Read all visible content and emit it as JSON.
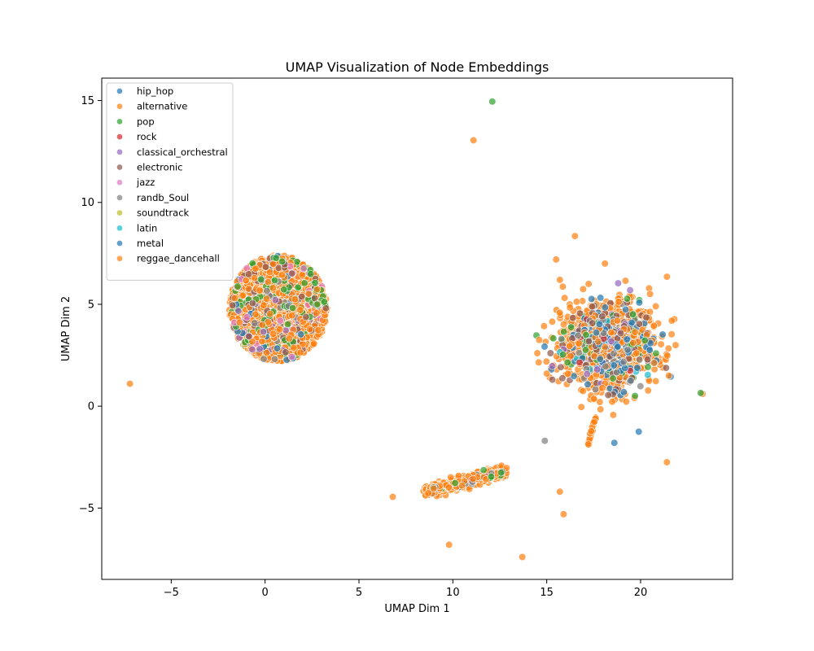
{
  "chart_data": {
    "type": "scatter",
    "title": "UMAP Visualization of Node Embeddings",
    "xlabel": "UMAP Dim 1",
    "ylabel": "UMAP Dim 2",
    "xlim": [
      -8.7,
      24.9
    ],
    "ylim": [
      -8.5,
      16.1
    ],
    "xticks": [
      -5,
      0,
      5,
      10,
      15,
      20
    ],
    "yticks": [
      -5,
      0,
      5,
      10,
      15
    ],
    "grid": false,
    "legend_position": "top-left",
    "legend": [
      {
        "name": "hip_hop",
        "color": "#1f77b4"
      },
      {
        "name": "alternative",
        "color": "#ff7f0e"
      },
      {
        "name": "pop",
        "color": "#2ca02c"
      },
      {
        "name": "rock",
        "color": "#d62728"
      },
      {
        "name": "classical_orchestral",
        "color": "#9467bd"
      },
      {
        "name": "electronic",
        "color": "#8c564b"
      },
      {
        "name": "jazz",
        "color": "#e377c2"
      },
      {
        "name": "randb_Soul",
        "color": "#7f7f7f"
      },
      {
        "name": "soundtrack",
        "color": "#bcbd22"
      },
      {
        "name": "latin",
        "color": "#17becf"
      },
      {
        "name": "metal",
        "color": "#1f77b4"
      },
      {
        "name": "reggae_dancehall",
        "color": "#ff7f0e"
      }
    ],
    "clusters": [
      {
        "shape": "disc",
        "center": [
          0.7,
          4.8
        ],
        "rx": 2.6,
        "ry": 2.6,
        "count": 2200,
        "mix": {
          "reggae_dancehall": 0.78,
          "alternative": 0.1,
          "pop": 0.04,
          "electronic": 0.03,
          "randb_Soul": 0.02,
          "classical_orchestral": 0.01,
          "jazz": 0.01,
          "metal": 0.01
        }
      },
      {
        "shape": "blob",
        "center": [
          18.3,
          3.0
        ],
        "rx": 2.4,
        "ry": 2.0,
        "count": 1400,
        "mix": {
          "reggae_dancehall": 0.58,
          "alternative": 0.12,
          "hip_hop": 0.06,
          "metal": 0.05,
          "electronic": 0.07,
          "pop": 0.04,
          "randb_Soul": 0.04,
          "classical_orchestral": 0.02,
          "latin": 0.01,
          "rock": 0.01
        }
      },
      {
        "shape": "band",
        "from": [
          8.5,
          -4.2
        ],
        "to": [
          12.8,
          -3.2
        ],
        "width": 0.35,
        "count": 550,
        "mix": {
          "reggae_dancehall": 0.86,
          "alternative": 0.08,
          "randb_Soul": 0.03,
          "pop": 0.02,
          "rock": 0.01
        }
      },
      {
        "shape": "band",
        "from": [
          17.2,
          -1.9
        ],
        "to": [
          17.6,
          -0.5
        ],
        "width": 0.08,
        "count": 40,
        "mix": {
          "reggae_dancehall": 1.0
        }
      }
    ],
    "outliers": [
      {
        "x": 12.1,
        "y": 14.95,
        "series": "pop"
      },
      {
        "x": 11.1,
        "y": 13.05,
        "series": "reggae_dancehall"
      },
      {
        "x": -7.2,
        "y": 1.1,
        "series": "reggae_dancehall"
      },
      {
        "x": 6.8,
        "y": -4.45,
        "series": "reggae_dancehall"
      },
      {
        "x": 9.8,
        "y": -6.8,
        "series": "reggae_dancehall"
      },
      {
        "x": 13.7,
        "y": -7.4,
        "series": "reggae_dancehall"
      },
      {
        "x": 15.7,
        "y": -4.2,
        "series": "reggae_dancehall"
      },
      {
        "x": 15.9,
        "y": -5.3,
        "series": "reggae_dancehall"
      },
      {
        "x": 16.5,
        "y": 8.35,
        "series": "alternative"
      },
      {
        "x": 15.5,
        "y": 7.2,
        "series": "reggae_dancehall"
      },
      {
        "x": 18.1,
        "y": 7.0,
        "series": "reggae_dancehall"
      },
      {
        "x": 15.7,
        "y": 6.2,
        "series": "reggae_dancehall"
      },
      {
        "x": 21.4,
        "y": 6.35,
        "series": "reggae_dancehall"
      },
      {
        "x": 21.4,
        "y": -2.75,
        "series": "reggae_dancehall"
      },
      {
        "x": 23.3,
        "y": 0.6,
        "series": "reggae_dancehall"
      },
      {
        "x": 23.2,
        "y": 0.65,
        "series": "pop"
      },
      {
        "x": 14.9,
        "y": -1.7,
        "series": "randb_Soul"
      },
      {
        "x": 18.6,
        "y": -1.8,
        "series": "metal"
      },
      {
        "x": 19.9,
        "y": -1.25,
        "series": "metal"
      },
      {
        "x": 21.6,
        "y": 1.45,
        "series": "metal"
      },
      {
        "x": 21.5,
        "y": 1.5,
        "series": "reggae_dancehall"
      },
      {
        "x": 14.5,
        "y": 2.6,
        "series": "reggae_dancehall"
      },
      {
        "x": 15.2,
        "y": 2.6,
        "series": "electronic"
      },
      {
        "x": 15.3,
        "y": 1.3,
        "series": "electronic"
      },
      {
        "x": 15.0,
        "y": 1.6,
        "series": "reggae_dancehall"
      },
      {
        "x": 14.6,
        "y": 3.25,
        "series": "reggae_dancehall"
      }
    ]
  }
}
